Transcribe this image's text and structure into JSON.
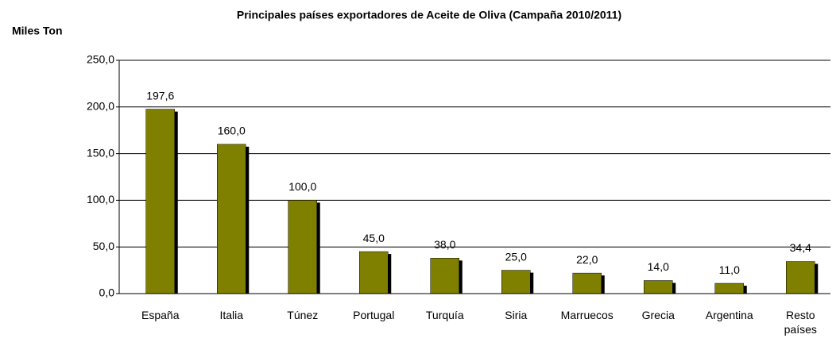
{
  "chart_data": {
    "type": "bar",
    "title": "Principales países exportadores de Aceite de Oliva (Campaña 2010/2011)",
    "y_label": "Miles Ton",
    "categories": [
      "España",
      "Italia",
      "Túnez",
      "Portugal",
      "Turquía",
      "Siria",
      "Marruecos",
      "Grecia",
      "Argentina",
      "Resto países"
    ],
    "values": [
      197.6,
      160.0,
      100.0,
      45.0,
      38.0,
      25.0,
      22.0,
      14.0,
      11.0,
      34.4
    ],
    "value_labels": [
      "197,6",
      "160,0",
      "100,0",
      "45,0",
      "38,0",
      "25,0",
      "22,0",
      "14,0",
      "11,0",
      "34,4"
    ],
    "color": "#808000",
    "ylim": [
      0,
      250
    ],
    "yticks": [
      {
        "value": 0,
        "label": "0,0"
      },
      {
        "value": 50,
        "label": "50,0"
      },
      {
        "value": 100,
        "label": "100,0"
      },
      {
        "value": 150,
        "label": "150,0"
      },
      {
        "value": 200,
        "label": "200,0"
      },
      {
        "value": 250,
        "label": "250,0"
      }
    ],
    "grid": true
  }
}
